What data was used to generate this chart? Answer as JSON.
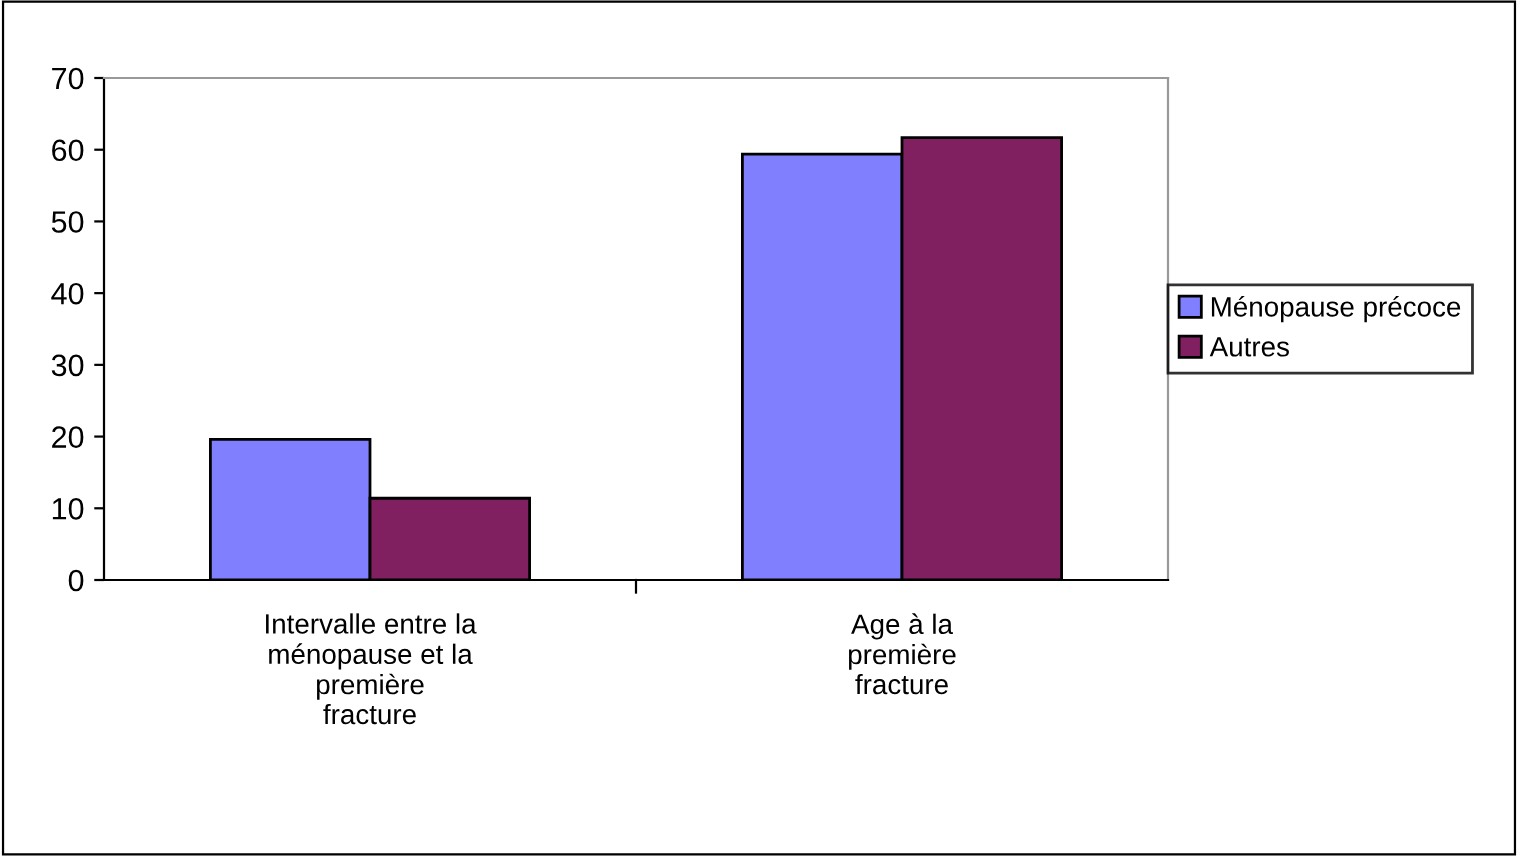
{
  "chart_data": {
    "type": "bar",
    "categories": [
      "Intervalle entre la\nménopause et la\npremière\nfracture",
      "Age à la\npremière\nfracture"
    ],
    "series": [
      {
        "name": "Ménopause précoce",
        "color": "#8080ff",
        "values": [
          19.6,
          59.4
        ]
      },
      {
        "name": "Autres",
        "color": "#802060",
        "values": [
          11.4,
          61.7
        ]
      }
    ],
    "ylim": [
      0,
      70
    ],
    "yticks": [
      0,
      10,
      20,
      30,
      40,
      50,
      60,
      70
    ],
    "grid": false,
    "legend": "right"
  }
}
